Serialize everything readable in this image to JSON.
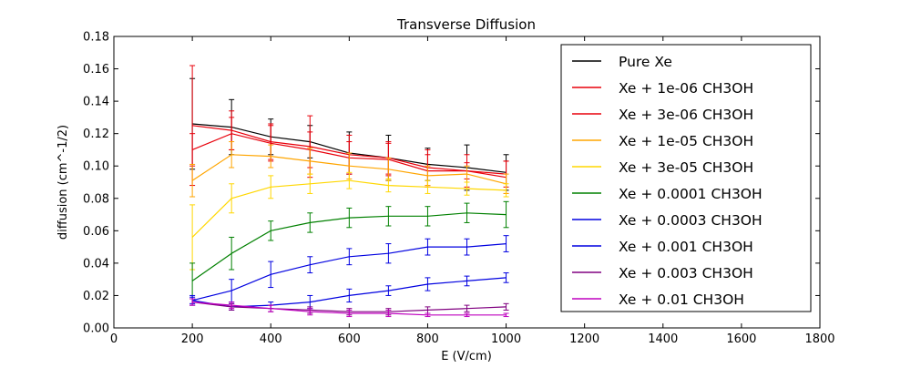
{
  "chart_data": {
    "type": "line",
    "title": "Transverse Diffusion",
    "xlabel": "E (V/cm)",
    "ylabel": "diffusion (cm^-1/2)",
    "xlim": [
      0,
      1800
    ],
    "ylim": [
      0,
      0.18
    ],
    "xticks": [
      0,
      200,
      400,
      600,
      800,
      1000,
      1200,
      1400,
      1600,
      1800
    ],
    "yticks": [
      0.0,
      0.02,
      0.04,
      0.06,
      0.08,
      0.1,
      0.12,
      0.14,
      0.16,
      0.18
    ],
    "ytick_labels": [
      "0.00",
      "0.02",
      "0.04",
      "0.06",
      "0.08",
      "0.10",
      "0.12",
      "0.14",
      "0.16",
      "0.18"
    ],
    "legend_position": "top-right",
    "grid": false,
    "x": [
      200,
      300,
      400,
      500,
      600,
      700,
      800,
      900,
      1000
    ],
    "series": [
      {
        "name": "Pure Xe",
        "color": "#000000",
        "values": [
          0.126,
          0.124,
          0.118,
          0.115,
          0.108,
          0.105,
          0.101,
          0.099,
          0.096
        ],
        "errors": [
          0.028,
          0.017,
          0.011,
          0.01,
          0.013,
          0.014,
          0.01,
          0.014,
          0.011
        ]
      },
      {
        "name": "Xe + 1e-06 CH3OH",
        "color": "#e8000b",
        "values": [
          0.125,
          0.122,
          0.115,
          0.112,
          0.107,
          0.105,
          0.099,
          0.097,
          0.095
        ],
        "errors": [
          0.037,
          0.012,
          0.011,
          0.019,
          0.012,
          0.01,
          0.011,
          0.005,
          0.008
        ]
      },
      {
        "name": "Xe + 3e-06 CH3OH",
        "color": "#e8000b",
        "values": [
          0.11,
          0.12,
          0.114,
          0.11,
          0.105,
          0.104,
          0.097,
          0.097,
          0.093
        ],
        "errors": [
          0.01,
          0.01,
          0.011,
          0.011,
          0.01,
          0.01,
          0.01,
          0.01,
          0.01
        ]
      },
      {
        "name": "Xe + 1e-05 CH3OH",
        "color": "#ffa500",
        "values": [
          0.091,
          0.107,
          0.106,
          0.103,
          0.1,
          0.098,
          0.094,
          0.095,
          0.089
        ],
        "errors": [
          0.01,
          0.008,
          0.007,
          0.008,
          0.008,
          0.007,
          0.006,
          0.005,
          0.006
        ]
      },
      {
        "name": "Xe + 3e-05 CH3OH",
        "color": "#ffd700",
        "values": [
          0.056,
          0.08,
          0.087,
          0.089,
          0.091,
          0.088,
          0.087,
          0.086,
          0.085
        ],
        "errors": [
          0.02,
          0.009,
          0.007,
          0.006,
          0.005,
          0.004,
          0.004,
          0.004,
          0.004
        ]
      },
      {
        "name": "Xe + 0.0001 CH3OH",
        "color": "#008000",
        "values": [
          0.029,
          0.046,
          0.06,
          0.065,
          0.068,
          0.069,
          0.069,
          0.071,
          0.07
        ],
        "errors": [
          0.011,
          0.01,
          0.006,
          0.006,
          0.006,
          0.006,
          0.006,
          0.006,
          0.008
        ]
      },
      {
        "name": "Xe + 0.0003 CH3OH",
        "color": "#0000e0",
        "values": [
          0.017,
          0.023,
          0.033,
          0.039,
          0.044,
          0.046,
          0.05,
          0.05,
          0.052
        ],
        "errors": [
          0.003,
          0.007,
          0.008,
          0.005,
          0.005,
          0.006,
          0.005,
          0.005,
          0.005
        ]
      },
      {
        "name": "Xe + 0.001 CH3OH",
        "color": "#0000e0",
        "values": [
          0.017,
          0.013,
          0.014,
          0.016,
          0.02,
          0.023,
          0.027,
          0.029,
          0.031
        ],
        "errors": [
          0.002,
          0.002,
          0.002,
          0.004,
          0.004,
          0.003,
          0.004,
          0.003,
          0.003
        ]
      },
      {
        "name": "Xe + 0.003 CH3OH",
        "color": "#800080",
        "values": [
          0.016,
          0.013,
          0.012,
          0.011,
          0.01,
          0.01,
          0.011,
          0.012,
          0.013
        ],
        "errors": [
          0.002,
          0.002,
          0.002,
          0.002,
          0.002,
          0.002,
          0.002,
          0.002,
          0.002
        ]
      },
      {
        "name": "Xe + 0.01 CH3OH",
        "color": "#bf00bf",
        "values": [
          0.016,
          0.014,
          0.012,
          0.01,
          0.009,
          0.009,
          0.008,
          0.008,
          0.008
        ],
        "errors": [
          0.002,
          0.002,
          0.002,
          0.002,
          0.002,
          0.002,
          0.001,
          0.001,
          0.001
        ]
      }
    ]
  }
}
